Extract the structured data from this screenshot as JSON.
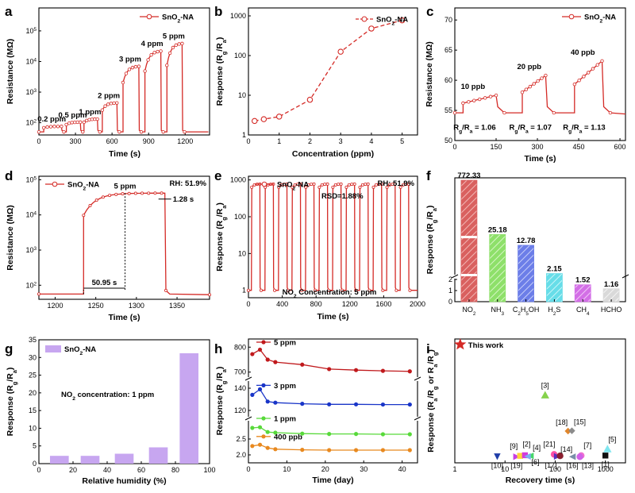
{
  "figure": {
    "panel_letters": [
      "a",
      "b",
      "c",
      "d",
      "e",
      "f",
      "g",
      "h",
      "i"
    ],
    "colors": {
      "red": "#d42a26",
      "axis": "#000000",
      "purple": "#c7a6f0"
    }
  },
  "chart_data": [
    {
      "id": "a",
      "type": "line",
      "xlabel": "Time (s)",
      "ylabel": "Resistance (MΩ)",
      "xlim": [
        0,
        1400
      ],
      "ylim_log10": [
        1.6,
        5.75
      ],
      "xticks": [
        0,
        300,
        600,
        900,
        1200
      ],
      "yticks_exp": [
        2,
        3,
        4,
        5
      ],
      "tick_base": "10",
      "legend": "SnO2-NA",
      "legend_position": "top-right",
      "baseline_log10": 1.7,
      "pulses": [
        {
          "label": "0.2 ppm",
          "start": 40,
          "end": 185,
          "rise_log10": 1.88
        },
        {
          "label": "0.5 ppm",
          "start": 225,
          "end": 340,
          "rise_log10": 2.02
        },
        {
          "label": "1 ppm",
          "start": 370,
          "end": 480,
          "rise_log10": 2.12
        },
        {
          "label": "2 ppm",
          "start": 520,
          "end": 640,
          "rise_log10": 2.65
        },
        {
          "label": "3 ppm",
          "start": 690,
          "end": 820,
          "rise_log10": 3.85
        },
        {
          "label": "4 ppm",
          "start": 870,
          "end": 1000,
          "rise_log10": 4.35
        },
        {
          "label": "5 ppm",
          "start": 1050,
          "end": 1175,
          "rise_log10": 4.6
        }
      ]
    },
    {
      "id": "b",
      "type": "line",
      "xlabel": "Concentration (ppm)",
      "ylabel": "Response (Rg/Ra)",
      "xlim": [
        0,
        5.5
      ],
      "ylim_log10": [
        0,
        3.2
      ],
      "xticks": [
        0,
        1,
        2,
        3,
        4,
        5
      ],
      "yticks": [
        "1",
        "10",
        "100",
        "1000"
      ],
      "legend": "SnO2-NA",
      "legend_position": "top-right",
      "x": [
        0.2,
        0.5,
        1,
        2,
        3,
        4,
        5
      ],
      "y": [
        2.25,
        2.5,
        2.9,
        7.7,
        125,
        480,
        772
      ]
    },
    {
      "id": "c",
      "type": "line",
      "xlabel": "Time (s)",
      "ylabel": "Resistance (MΩ)",
      "xlim": [
        0,
        620
      ],
      "ylim": [
        50,
        72
      ],
      "xticks": [
        0,
        150,
        300,
        450,
        600
      ],
      "yticks": [
        50,
        55,
        60,
        65,
        70
      ],
      "legend": "SnO2-NA",
      "legend_position": "top-right",
      "baseline": 54.6,
      "pulses": [
        {
          "label": "10 ppb",
          "start": 30,
          "end": 150,
          "top": 57.5,
          "annotation": "Rg/Ra = 1.06"
        },
        {
          "label": "20 ppb",
          "start": 245,
          "end": 330,
          "top": 60.8,
          "annotation": "Rg/Ra = 1.07"
        },
        {
          "label": "40 ppb",
          "start": 435,
          "end": 535,
          "top": 63.2,
          "annotation": "Rg/Ra = 1.13"
        }
      ]
    },
    {
      "id": "d",
      "type": "line",
      "xlabel": "Time (s)",
      "ylabel": "Resistance (MΩ)",
      "xlim": [
        1180,
        1390
      ],
      "ylim_log10": [
        1.6,
        5.1
      ],
      "xticks": [
        1200,
        1250,
        1300,
        1350
      ],
      "yticks_exp": [
        2,
        3,
        4,
        5
      ],
      "tick_base": "10",
      "legend": "SnO2-NA",
      "legend_position": "top-left",
      "rh_label": "RH: 51.9%",
      "baseline_log10": 1.75,
      "plateau_log10": 4.62,
      "on": 1235,
      "off": 1335,
      "concentration_label": "5 ppm",
      "response_time_label": "50.95 s",
      "recovery_time_label": "1.28 s",
      "response_time_start": 1235,
      "response_time_end": 1286,
      "recovery_time_start": 1335,
      "recovery_time_end": 1336.3
    },
    {
      "id": "e",
      "type": "line",
      "xlabel": "Time (s)",
      "ylabel": "Response (Rg/Ra)",
      "xlim": [
        0,
        2000
      ],
      "ylim_log10": [
        -0.2,
        3.1
      ],
      "xticks": [
        0,
        400,
        800,
        1200,
        1600,
        2000
      ],
      "yticks": [
        "1",
        "10",
        "100",
        "1000"
      ],
      "legend": "SnO2-NA",
      "legend_position": "top-left",
      "rh_label": "RH: 51.9%",
      "annotations": [
        "RSD=1.88%",
        "NO2 Concentration: 5 ppm"
      ],
      "cycles": 12,
      "cycle_period": 160,
      "first_on": 35,
      "on_duration": 100,
      "peak_response": 772,
      "baseline_response": 1
    },
    {
      "id": "f",
      "type": "bar",
      "ylabel": "Response (Rg/Ra)",
      "categories": [
        "NO2",
        "NH3",
        "C2H5OH",
        "H2S",
        "CH4",
        "HCHO"
      ],
      "values": [
        772.33,
        25.18,
        12.78,
        2.15,
        1.52,
        1.16
      ],
      "value_labels": [
        "772.33",
        "25.18",
        "12.78",
        "2.15",
        "1.52",
        "1.16"
      ],
      "colors": [
        "#d9605f",
        "#8ee06a",
        "#6c7ee8",
        "#67dde8",
        "#d36fe6",
        "#d9d9d9"
      ],
      "yticks": [
        "0",
        "1",
        "2"
      ],
      "broken_axis": true
    },
    {
      "id": "g",
      "type": "bar",
      "xlabel": "Relative humidity (%)",
      "ylabel": "Response (Rg/Ra)",
      "xlim": [
        0,
        100
      ],
      "ylim": [
        0,
        35
      ],
      "xticks": [
        0,
        20,
        40,
        60,
        80,
        100
      ],
      "yticks": [
        0,
        5,
        10,
        15,
        20,
        25,
        30,
        35
      ],
      "legend": "SnO2-NA",
      "legend_position": "top-left",
      "annotation": "NO2 concentration: 1 ppm",
      "x": [
        12,
        30,
        50,
        70,
        88
      ],
      "values": [
        2.2,
        2.2,
        2.8,
        4.6,
        31.2
      ]
    },
    {
      "id": "h",
      "type": "line",
      "xlabel": "Time (day)",
      "ylabel": "Response (Rg/Ra)",
      "xlim": [
        0,
        44
      ],
      "xticks": [
        0,
        10,
        20,
        30,
        40
      ],
      "yticks": [
        "2.0",
        "2.5",
        "120",
        "140",
        "700",
        "800"
      ],
      "broken_axis": true,
      "x": [
        1,
        3,
        5,
        7,
        14,
        21,
        28,
        35,
        42
      ],
      "series": [
        {
          "name": "5 ppm",
          "color": "#c0191c",
          "values": [
            772,
            790,
            750,
            740,
            730,
            712,
            708,
            705,
            703
          ]
        },
        {
          "name": "3 ppm",
          "color": "#1935c8",
          "values": [
            134,
            139,
            128,
            127,
            126,
            125.5,
            125.5,
            125.3,
            125.3
          ]
        },
        {
          "name": "1 ppm",
          "color": "#58d93a",
          "values": [
            2.85,
            2.87,
            2.72,
            2.7,
            2.67,
            2.66,
            2.66,
            2.65,
            2.65
          ]
        },
        {
          "name": "400 ppb",
          "color": "#e8891f",
          "values": [
            2.28,
            2.32,
            2.22,
            2.18,
            2.16,
            2.15,
            2.15,
            2.15,
            2.15
          ]
        }
      ]
    },
    {
      "id": "i",
      "type": "scatter",
      "xlabel": "Recovery time (s)",
      "ylabel": "Response (Rg/Ra or Ra/Rg)",
      "xlim_log10": [
        0,
        3.4
      ],
      "xticks": [
        "1",
        "10",
        "100",
        "1000"
      ],
      "ylim": [
        -40,
        810
      ],
      "this_work_label": "This work",
      "points": [
        {
          "label": "This work",
          "x": 1.28,
          "y": 772,
          "shape": "star",
          "color": "#d42a26"
        },
        {
          "label": "[3]",
          "x": 63,
          "y": 425,
          "shape": "triangle",
          "color": "#86d24c"
        },
        {
          "label": "[18]",
          "x": 180,
          "y": 178,
          "shape": "diamond",
          "color": "#e0862c"
        },
        {
          "label": "[15]",
          "x": 215,
          "y": 180,
          "shape": "diamond",
          "color": "#8b8b8b"
        },
        {
          "label": "[5]",
          "x": 1100,
          "y": 55,
          "shape": "triangle",
          "color": "#7fe6ef"
        },
        {
          "label": "[10]",
          "x": 7,
          "y": 2,
          "shape": "triangle-down",
          "color": "#1f3da8"
        },
        {
          "label": "[19]",
          "x": 17,
          "y": 2,
          "shape": "triangle-right",
          "color": "#c73fe4"
        },
        {
          "label": "[9]",
          "x": 20,
          "y": 8,
          "shape": "square",
          "color": "#ffd43a"
        },
        {
          "label": "[2]",
          "x": 25,
          "y": 12,
          "shape": "square",
          "color": "#d33ad9"
        },
        {
          "label": "[4]",
          "x": 32,
          "y": 8,
          "shape": "triangle-left",
          "color": "#46d66a"
        },
        {
          "label": "[6]",
          "x": 28,
          "y": 4,
          "shape": "triangle-left",
          "color": "#7ab0f0"
        },
        {
          "label": "[21]",
          "x": 95,
          "y": 18,
          "shape": "circle",
          "color": "#ff4fa6"
        },
        {
          "label": "[17]",
          "x": 110,
          "y": 4,
          "shape": "triangle-right",
          "color": "#5a2fbf"
        },
        {
          "label": "[14]",
          "x": 125,
          "y": 8,
          "shape": "circle",
          "color": "#8a1f2f"
        },
        {
          "label": "[16]",
          "x": 220,
          "y": 2,
          "shape": "triangle-left",
          "color": "#7a8fa8"
        },
        {
          "label": "[7]",
          "x": 330,
          "y": 10,
          "shape": "circle",
          "color": "#f06fd0"
        },
        {
          "label": "[13]",
          "x": 310,
          "y": 2,
          "shape": "circle",
          "color": "#d060e8"
        },
        {
          "label": "[1]",
          "x": 1000,
          "y": 10,
          "shape": "square",
          "color": "#111111"
        }
      ]
    }
  ]
}
